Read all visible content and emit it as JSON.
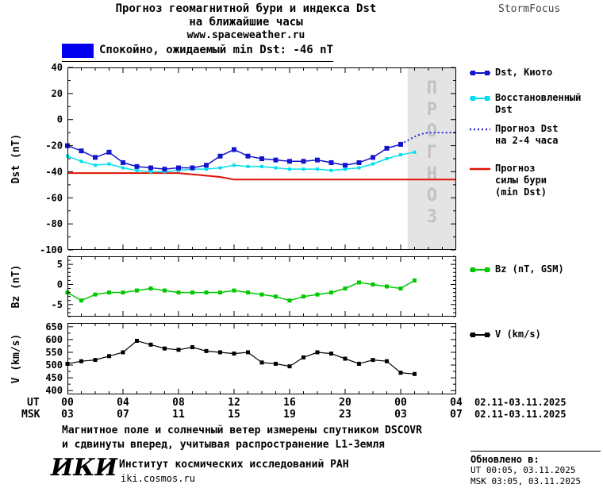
{
  "header": {
    "title_line1": "Прогноз геомагнитной бури и индекса Dst",
    "title_line2": "на ближайшие часы",
    "website": "www.spaceweather.ru",
    "brand": "StormFocus"
  },
  "status": {
    "label": "Спокойно, ожидаемый min Dst: -46 nT",
    "swatch_color": "#0000ee"
  },
  "legend": {
    "dst_kyoto": "Dst, Киото",
    "recovered_line1": "Восстановленный",
    "recovered_line2": "Dst",
    "forecast_line1": "Прогноз Dst",
    "forecast_line2": "на 2-4 часа",
    "storm_line1": "Прогноз",
    "storm_line2": "силы бури",
    "storm_line3": "(min Dst)",
    "bz": "Bz (nT, GSM)",
    "v": "V (km/s)"
  },
  "watermark": "ПРОГНОЗ",
  "axis": {
    "ut_label": "UT",
    "msk_label": "MSK",
    "ut_ticks": [
      "00",
      "04",
      "08",
      "12",
      "16",
      "20",
      "00",
      "04"
    ],
    "msk_ticks": [
      "03",
      "07",
      "11",
      "15",
      "19",
      "23",
      "03",
      "07"
    ],
    "ut_date": "02.11-03.11.2025",
    "msk_date": "02.11-03.11.2025"
  },
  "footnote": {
    "line1": "Магнитное поле и солнечный ветер измерены спутником DSCOVR",
    "line2": "и сдвинуты вперед, учитывая распространение L1-Земля"
  },
  "updated": {
    "label": "Обновлено в:",
    "ut": "UT  00:05, 03.11.2025",
    "msk": "MSK 03:05, 03.11.2025"
  },
  "footer": {
    "logo": "ИКИ",
    "institute": "Институт космических исследований РАН",
    "site": "iki.cosmos.ru"
  },
  "chart_data": {
    "type": "line",
    "title": "Прогноз геомагнитной бури и индекса Dst на ближайшие часы",
    "x_unit": "часы UT, 02.11-03.11.2025",
    "xlim": [
      0,
      28
    ],
    "xticks_hours": [
      0,
      4,
      8,
      12,
      16,
      20,
      24,
      28
    ],
    "forecast_region": [
      24.5,
      28
    ],
    "forecast_region_color": "#e4e4e4",
    "panels": [
      {
        "name": "dst",
        "ylabel": "Dst (nT)",
        "ylim": [
          -100,
          40
        ],
        "yticks": [
          40,
          20,
          0,
          -20,
          -40,
          -60,
          -80,
          -100
        ],
        "ytick_minor_step": 10,
        "series": [
          {
            "id": "dst-kyoto",
            "name": "Dst, Киото",
            "color": "#1414cd",
            "width": 1.5,
            "marker": true,
            "marker_size": 6,
            "x": [
              0,
              1,
              2,
              3,
              4,
              5,
              6,
              7,
              8,
              9,
              10,
              11,
              12,
              13,
              14,
              15,
              16,
              17,
              18,
              19,
              20,
              21,
              22,
              23,
              24
            ],
            "y": [
              -20,
              -24,
              -29,
              -25,
              -33,
              -36,
              -37,
              -38,
              -37,
              -37,
              -35,
              -28,
              -23,
              -28,
              -30,
              -31,
              -32,
              -32,
              -31,
              -33,
              -35,
              -33,
              -29,
              -22,
              -19
            ]
          },
          {
            "id": "dst-recovered",
            "name": "Восстановленный Dst",
            "color": "#00dfee",
            "width": 1.5,
            "marker": true,
            "marker_size": 4,
            "x": [
              0,
              1,
              2,
              3,
              4,
              5,
              6,
              7,
              8,
              9,
              10,
              11,
              12,
              13,
              14,
              15,
              16,
              17,
              18,
              19,
              20,
              21,
              22,
              23,
              24,
              25
            ],
            "y": [
              -28,
              -32,
              -35,
              -34,
              -37,
              -39,
              -40,
              -40,
              -39,
              -38,
              -38,
              -37,
              -35,
              -36,
              -36,
              -37,
              -38,
              -38,
              -38,
              -39,
              -38,
              -37,
              -34,
              -30,
              -27,
              -25
            ]
          },
          {
            "id": "dst-forecast",
            "name": "Прогноз Dst на 2-4 часа",
            "color": "#2828cd",
            "width": 2,
            "style": "dotted",
            "marker": false,
            "x": [
              24,
              24.5,
              25,
              25.5,
              26,
              26.5,
              27,
              27.5,
              28
            ],
            "y": [
              -19,
              -16,
              -13,
              -11,
              -10,
              -10,
              -10,
              -10,
              -10
            ]
          },
          {
            "id": "storm-forecast",
            "name": "Прогноз силы бури (min Dst)",
            "color": "#e01000",
            "width": 2,
            "marker": false,
            "x": [
              0,
              8,
              9,
              10,
              11,
              12,
              28
            ],
            "y": [
              -41,
              -41,
              -42,
              -43,
              -44,
              -46,
              -46
            ]
          }
        ]
      },
      {
        "name": "bz",
        "ylabel": "Bz (nT)",
        "ylim": [
          -8,
          7
        ],
        "yticks": [
          5,
          0,
          -5
        ],
        "ytick_minor_step": 1,
        "series": [
          {
            "id": "bz",
            "name": "Bz (nT, GSM)",
            "color": "#00c800",
            "width": 1.5,
            "marker": true,
            "marker_size": 5,
            "x": [
              0,
              1,
              2,
              3,
              4,
              5,
              6,
              7,
              8,
              9,
              10,
              11,
              12,
              13,
              14,
              15,
              16,
              17,
              18,
              19,
              20,
              21,
              22,
              23,
              24,
              25
            ],
            "y": [
              -2,
              -4,
              -2.5,
              -2,
              -2,
              -1.5,
              -1,
              -1.5,
              -2,
              -2,
              -2,
              -2,
              -1.5,
              -2,
              -2.5,
              -3,
              -4,
              -3,
              -2.5,
              -2,
              -1,
              0.5,
              0,
              -0.5,
              -1,
              1
            ]
          }
        ]
      },
      {
        "name": "v",
        "ylabel": "V (km/s)",
        "ylim": [
          385,
          665
        ],
        "yticks": [
          650,
          600,
          550,
          500,
          450,
          400
        ],
        "ytick_minor_step": 25,
        "series": [
          {
            "id": "v",
            "name": "V (km/s)",
            "color": "#000000",
            "width": 1.2,
            "marker": true,
            "marker_size": 5,
            "x": [
              0,
              1,
              2,
              3,
              4,
              5,
              6,
              7,
              8,
              9,
              10,
              11,
              12,
              13,
              14,
              15,
              16,
              17,
              18,
              19,
              20,
              21,
              22,
              23,
              24,
              25
            ],
            "y": [
              505,
              515,
              520,
              535,
              550,
              595,
              580,
              565,
              560,
              570,
              555,
              550,
              545,
              550,
              510,
              505,
              495,
              530,
              550,
              545,
              525,
              505,
              520,
              515,
              470,
              465
            ]
          }
        ]
      }
    ]
  }
}
